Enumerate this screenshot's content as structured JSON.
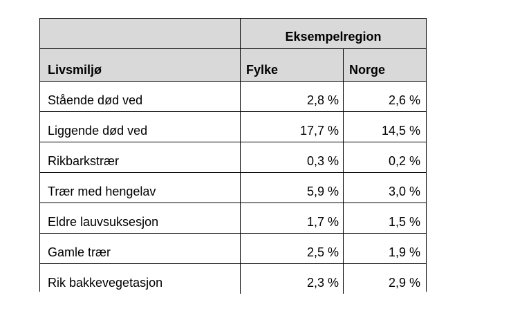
{
  "table": {
    "region_header": "Eksempelregion",
    "columns": [
      "Livsmiljø",
      "Fylke",
      "Norge"
    ],
    "rows": [
      {
        "name": "Stående død ved",
        "fylke": "2,8 %",
        "norge": "2,6 %"
      },
      {
        "name": "Liggende død ved",
        "fylke": "17,7 %",
        "norge": "14,5 %"
      },
      {
        "name": "Rikbarkstrær",
        "fylke": "0,3 %",
        "norge": "0,2 %"
      },
      {
        "name": "Trær med hengelav",
        "fylke": "5,9 %",
        "norge": "3,0 %"
      },
      {
        "name": "Eldre lauvsuksesjon",
        "fylke": "1,7 %",
        "norge": "1,5 %"
      },
      {
        "name": "Gamle trær",
        "fylke": "2,5 %",
        "norge": "1,9 %"
      },
      {
        "name": "Rik bakkevegetasjon",
        "fylke": "2,3 %",
        "norge": "2,9 %"
      }
    ],
    "header_fill": "#d9d9d9"
  }
}
